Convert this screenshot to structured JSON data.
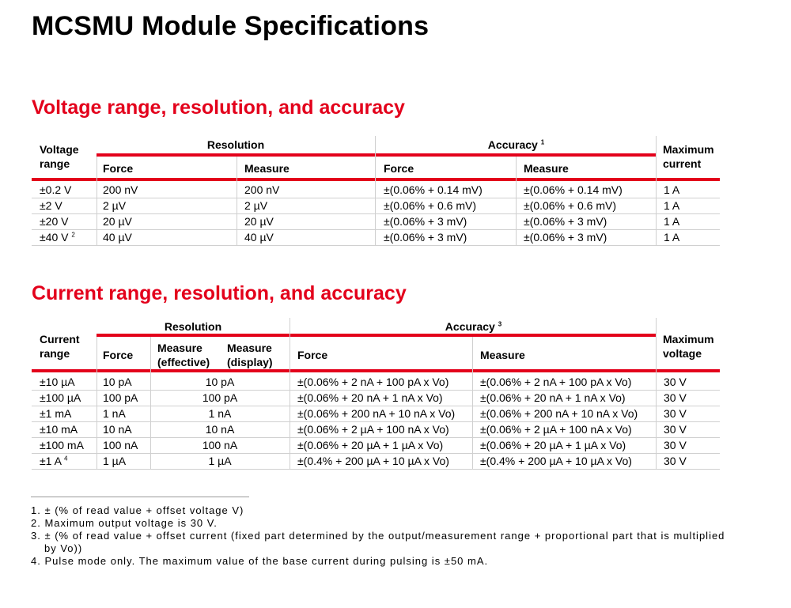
{
  "page_title": "MCSMU Module Specifications",
  "voltage": {
    "title": "Voltage range, resolution, and accuracy",
    "headers": {
      "range_line1": "Voltage",
      "range_line2": "range",
      "resolution": "Resolution",
      "accuracy": "Accuracy",
      "accuracy_note": "1",
      "force1": "Force",
      "measure1": "Measure",
      "force2": "Force",
      "measure2": "Measure",
      "max_line1": "Maximum",
      "max_line2": "current"
    },
    "rows": [
      {
        "range": "±0.2 V",
        "note": "",
        "res_force": "200 nV",
        "res_measure": "200 nV",
        "acc_force": "±(0.06% + 0.14 mV)",
        "acc_measure": "±(0.06% + 0.14 mV)",
        "max": "1 A"
      },
      {
        "range": "±2 V",
        "note": "",
        "res_force": "2 µV",
        "res_measure": "2 µV",
        "acc_force": "±(0.06% + 0.6 mV)",
        "acc_measure": "±(0.06% + 0.6 mV)",
        "max": "1 A"
      },
      {
        "range": "±20 V",
        "note": "",
        "res_force": "20 µV",
        "res_measure": "20 µV",
        "acc_force": "±(0.06% + 3 mV)",
        "acc_measure": "±(0.06% + 3 mV)",
        "max": "1 A"
      },
      {
        "range": "±40 V",
        "note": "2",
        "res_force": "40 µV",
        "res_measure": "40 µV",
        "acc_force": "±(0.06% + 3 mV)",
        "acc_measure": "±(0.06% + 3 mV)",
        "max": "1 A"
      }
    ]
  },
  "current": {
    "title": "Current range, resolution, and accuracy",
    "headers": {
      "range_line1": "Current",
      "range_line2": "range",
      "resolution": "Resolution",
      "accuracy": "Accuracy",
      "accuracy_note": "3",
      "force1": "Force",
      "meas_eff_line1": "Measure",
      "meas_eff_line2": "(effective)",
      "meas_disp_line1": "Measure",
      "meas_disp_line2": "(display)",
      "force2": "Force",
      "measure2": "Measure",
      "max_line1": "Maximum",
      "max_line2": "voltage"
    },
    "rows": [
      {
        "range": "±10 µA",
        "note": "",
        "res_force": "10 pA",
        "res_measure": "10 pA",
        "acc_force": "±(0.06% + 2 nA + 100 pA x Vo)",
        "acc_measure": "±(0.06% + 2 nA + 100 pA x Vo)",
        "max": "30 V"
      },
      {
        "range": "±100 µA",
        "note": "",
        "res_force": "100 pA",
        "res_measure": "100 pA",
        "acc_force": "±(0.06% + 20 nA + 1 nA x Vo)",
        "acc_measure": "±(0.06% + 20 nA + 1 nA x Vo)",
        "max": "30 V"
      },
      {
        "range": "±1 mA",
        "note": "",
        "res_force": "1 nA",
        "res_measure": "1 nA",
        "acc_force": "±(0.06% + 200 nA + 10 nA x Vo)",
        "acc_measure": "±(0.06% + 200 nA + 10 nA x Vo)",
        "max": "30 V"
      },
      {
        "range": "±10 mA",
        "note": "",
        "res_force": "10 nA",
        "res_measure": "10 nA",
        "acc_force": "±(0.06% + 2 µA + 100 nA x Vo)",
        "acc_measure": "±(0.06% + 2 µA + 100 nA x Vo)",
        "max": "30 V"
      },
      {
        "range": "±100 mA",
        "note": "",
        "res_force": "100 nA",
        "res_measure": "100 nA",
        "acc_force": "±(0.06% + 20 µA + 1 µA x Vo)",
        "acc_measure": "±(0.06% + 20 µA + 1 µA x Vo)",
        "max": "30 V"
      },
      {
        "range": "±1 A",
        "note": "4",
        "res_force": "1 µA",
        "res_measure": "1 µA",
        "acc_force": "±(0.4% + 200 µA + 10 µA x Vo)",
        "acc_measure": "±(0.4% + 200 µA + 10 µA x Vo)",
        "max": "30 V"
      }
    ]
  },
  "footnotes": {
    "fn1": "1. ± (% of read value + offset voltage V)",
    "fn2": "2. Maximum output voltage is 30 V.",
    "fn3_line1": "3. ± (% of read value + offset current (fixed part determined by the output/measurement range + proportional part that is multiplied",
    "fn3_line2": "by Vo))",
    "fn4": "4. Pulse mode only. The maximum value of the base current during pulsing is ±50 mA."
  }
}
